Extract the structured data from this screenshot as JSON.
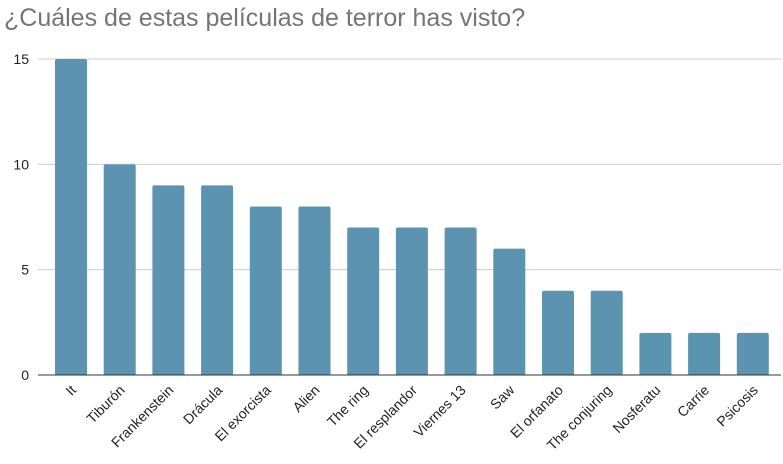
{
  "chart_data": {
    "type": "bar",
    "title": "¿Cuáles de estas películas de terror has visto?",
    "xlabel": "",
    "ylabel": "",
    "categories": [
      "It",
      "Tiburón",
      "Frankenstein",
      "Drácula",
      "El exorcista",
      "Alien",
      "The ring",
      "El resplandor",
      "Viernes 13",
      "Saw",
      "El orfanato",
      "The conjuring",
      "Nosferatu",
      "Carrie",
      "Psicosis"
    ],
    "values": [
      15,
      10,
      9,
      9,
      8,
      8,
      7,
      7,
      7,
      6,
      4,
      4,
      2,
      2,
      2
    ],
    "ylim": [
      0,
      15
    ],
    "yticks": [
      0,
      5,
      10,
      15
    ],
    "grid": true,
    "legend": "none",
    "bar_color": "#5b93b0",
    "grid_color": "#cccccc",
    "axis_color": "#333333"
  }
}
